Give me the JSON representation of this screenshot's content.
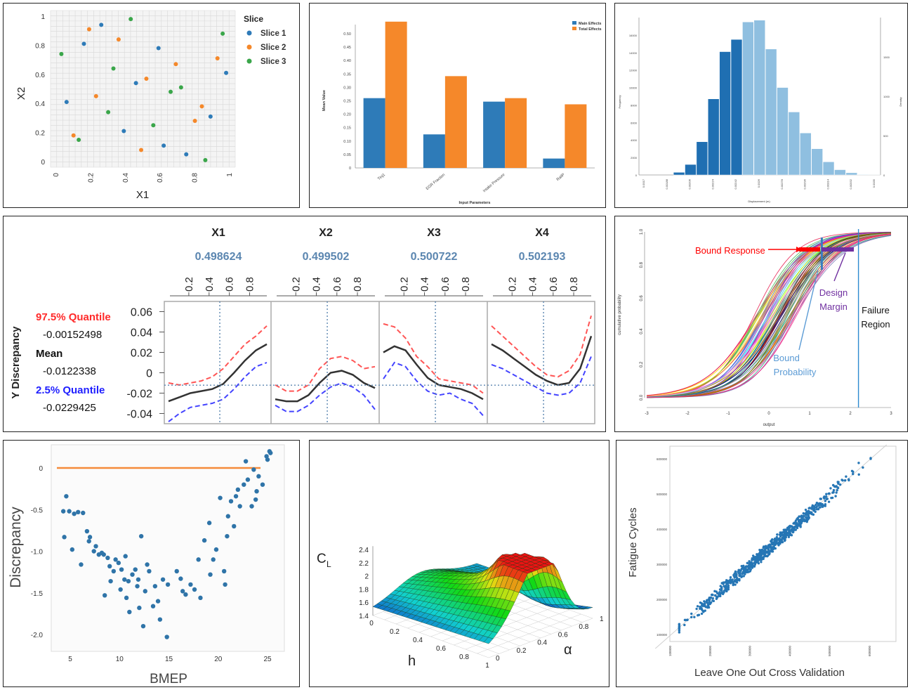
{
  "colors": {
    "blue": "#2e7bb8",
    "orange": "#f5882a",
    "green": "#3aa64a",
    "steel": "#5b86b0",
    "red": "#ff2a2a",
    "purple": "#7030a0",
    "darkblue": "#1f6fb2",
    "lightblue": "#8fbfe0"
  },
  "charts": {
    "scatter_slices": {
      "type": "scatter",
      "xlabel": "X1",
      "ylabel": "X2",
      "xticks": [
        "0",
        "0.2",
        "0.4",
        "0.6",
        "0.8",
        "1"
      ],
      "yticks": [
        "0",
        "0.2",
        "0.4",
        "0.6",
        "0.8",
        "1"
      ],
      "legend_title": "Slice",
      "series": [
        {
          "name": "Slice 1",
          "color": "#2e7bb8",
          "points": [
            [
              0.26,
              0.94
            ],
            [
              0.16,
              0.81
            ],
            [
              0.59,
              0.78
            ],
            [
              0.98,
              0.61
            ],
            [
              0.46,
              0.54
            ],
            [
              0.06,
              0.41
            ],
            [
              0.89,
              0.31
            ],
            [
              0.39,
              0.21
            ],
            [
              0.62,
              0.11
            ],
            [
              0.75,
              0.05
            ]
          ]
        },
        {
          "name": "Slice 2",
          "color": "#f5882a",
          "points": [
            [
              0.19,
              0.91
            ],
            [
              0.36,
              0.84
            ],
            [
              0.93,
              0.71
            ],
            [
              0.69,
              0.67
            ],
            [
              0.52,
              0.57
            ],
            [
              0.23,
              0.45
            ],
            [
              0.84,
              0.38
            ],
            [
              0.8,
              0.28
            ],
            [
              0.1,
              0.18
            ],
            [
              0.49,
              0.08
            ]
          ]
        },
        {
          "name": "Slice 3",
          "color": "#3aa64a",
          "points": [
            [
              0.43,
              0.98
            ],
            [
              0.96,
              0.88
            ],
            [
              0.03,
              0.74
            ],
            [
              0.33,
              0.64
            ],
            [
              0.72,
              0.51
            ],
            [
              0.66,
              0.48
            ],
            [
              0.3,
              0.34
            ],
            [
              0.56,
              0.25
            ],
            [
              0.13,
              0.15
            ],
            [
              0.86,
              0.01
            ]
          ]
        }
      ]
    },
    "sensitivity_bars": {
      "type": "bar",
      "xlabel": "Input Parameters",
      "ylabel": "Mean Value",
      "categories": [
        "Tinj1",
        "EGR Fraction",
        "Intake Pressure",
        "RailP"
      ],
      "yticks": [
        "0",
        "0.05",
        "0.10",
        "0.15",
        "0.20",
        "0.25",
        "0.30",
        "0.35",
        "0.40",
        "0.45",
        "0.50"
      ],
      "series": [
        {
          "name": "Main Effects",
          "color": "#2e7bb8",
          "values": [
            0.26,
            0.125,
            0.247,
            0.035
          ]
        },
        {
          "name": "Total Effects",
          "color": "#f5882a",
          "values": [
            0.545,
            0.342,
            0.26,
            0.237
          ]
        }
      ]
    },
    "histogram": {
      "type": "bar",
      "xlabel": "Displacement (m)",
      "ylabel": "Frequency",
      "y2label": "Density",
      "xticks": [
        "0.0017",
        "0.00188",
        "0.00206",
        "0.00224",
        "0.00242",
        "0.0026",
        "0.00278",
        "0.00296",
        "0.00314",
        "0.00332",
        "0.0035"
      ],
      "yticks": [
        "0",
        "2000",
        "4000",
        "6000",
        "8000",
        "10000",
        "12000",
        "14000",
        "16000"
      ],
      "y2ticks": [
        "0",
        "500",
        "1000",
        "1500"
      ],
      "values": [
        0,
        0,
        0,
        300,
        1200,
        3800,
        8700,
        14100,
        15500,
        17500,
        17700,
        14400,
        10000,
        7200,
        4800,
        3000,
        1500,
        600,
        250,
        50,
        10
      ],
      "split_index": 9,
      "colors": {
        "dark": "#1f6fb2",
        "light": "#8fbfe0"
      }
    },
    "profiler": {
      "type": "line",
      "ylabel": "Y Discrepancy",
      "panels": [
        {
          "name": "X1",
          "value": "0.498624"
        },
        {
          "name": "X2",
          "value": "0.499502"
        },
        {
          "name": "X3",
          "value": "0.500722"
        },
        {
          "name": "X4",
          "value": "0.502193"
        }
      ],
      "xticks": [
        "0.2",
        "0.4",
        "0.6",
        "0.8"
      ],
      "yticks": [
        "0.06",
        "0.04",
        "0.02",
        "0",
        "-0.02",
        "-0.04"
      ],
      "legend": [
        {
          "label": "97.5% Quantile",
          "value": "-0.00152498",
          "color": "#ff2a2a"
        },
        {
          "label": "Mean",
          "value": "-0.0122338",
          "color": "#111111"
        },
        {
          "label": "2.5% Quantile",
          "value": "-0.0229425",
          "color": "#1f1fff"
        }
      ],
      "curves": {
        "mean": [
          [
            -0.028,
            -0.024,
            -0.02,
            -0.018,
            -0.016,
            -0.011,
            0.0,
            0.012,
            0.022,
            0.028
          ],
          [
            -0.026,
            -0.028,
            -0.028,
            -0.022,
            -0.01,
            0.0,
            0.002,
            -0.002,
            -0.01,
            -0.015
          ],
          [
            0.02,
            0.026,
            0.022,
            0.008,
            -0.005,
            -0.012,
            -0.014,
            -0.016,
            -0.02,
            -0.026
          ],
          [
            0.028,
            0.022,
            0.014,
            0.006,
            -0.002,
            -0.008,
            -0.012,
            -0.01,
            0.004,
            0.036
          ]
        ],
        "upper": [
          [
            -0.01,
            -0.012,
            -0.01,
            -0.008,
            -0.004,
            0.004,
            0.016,
            0.028,
            0.036,
            0.046
          ],
          [
            -0.012,
            -0.018,
            -0.018,
            -0.012,
            0.004,
            0.014,
            0.016,
            0.012,
            0.004,
            0.006
          ],
          [
            0.048,
            0.045,
            0.034,
            0.016,
            0.006,
            -0.006,
            -0.008,
            -0.01,
            -0.012,
            -0.02
          ],
          [
            0.046,
            0.036,
            0.026,
            0.016,
            0.006,
            -0.002,
            -0.004,
            0.002,
            0.018,
            0.056
          ]
        ],
        "lower": [
          [
            -0.048,
            -0.04,
            -0.034,
            -0.032,
            -0.03,
            -0.026,
            -0.016,
            -0.004,
            0.006,
            0.01
          ],
          [
            -0.032,
            -0.038,
            -0.038,
            -0.032,
            -0.022,
            -0.014,
            -0.01,
            -0.014,
            -0.022,
            -0.036
          ],
          [
            -0.006,
            0.01,
            0.006,
            -0.008,
            -0.018,
            -0.022,
            -0.02,
            -0.026,
            -0.03,
            -0.042
          ],
          [
            0.008,
            0.004,
            -0.002,
            -0.008,
            -0.014,
            -0.02,
            -0.022,
            -0.02,
            -0.01,
            0.016
          ]
        ]
      }
    },
    "cdf": {
      "type": "line",
      "xlabel": "output",
      "ylabel": "cumulative probability",
      "xticks": [
        "-3",
        "-2",
        "-1",
        "0",
        "1",
        "2",
        "3"
      ],
      "yticks": [
        "0.0",
        "0.2",
        "0.4",
        "0.6",
        "0.8",
        "1.0"
      ],
      "annotations": {
        "bound_response": "Bound Response",
        "design_margin": "Design\nMargin",
        "failure_region": "Failure\nRegion",
        "bound_probability": "Bound\nProbability"
      },
      "failure_x": 2.2,
      "bound_x": 1.3
    },
    "discrepancy": {
      "type": "scatter",
      "xlabel": "BMEP",
      "ylabel": "Discrepancy",
      "xticks": [
        "5",
        "10",
        "15",
        "20",
        "25"
      ],
      "yticks": [
        "0",
        "-0.5",
        "-1.0",
        "-1.5",
        "-2.0"
      ],
      "ref_line": 0,
      "points": [
        [
          4.3,
          -0.52
        ],
        [
          4.6,
          -0.34
        ],
        [
          4.9,
          -0.52
        ],
        [
          4.4,
          -0.83
        ],
        [
          5.4,
          -0.55
        ],
        [
          5.8,
          -0.53
        ],
        [
          6.3,
          -0.54
        ],
        [
          6.1,
          -1.16
        ],
        [
          6.7,
          -0.76
        ],
        [
          7.0,
          -0.83
        ],
        [
          6.9,
          -0.88
        ],
        [
          7.4,
          -1.0
        ],
        [
          7.9,
          -1.04
        ],
        [
          8.4,
          -1.04
        ],
        [
          8.8,
          -1.08
        ],
        [
          8.5,
          -1.53
        ],
        [
          9.0,
          -1.18
        ],
        [
          9.1,
          -1.36
        ],
        [
          9.4,
          -1.24
        ],
        [
          9.9,
          -1.14
        ],
        [
          10.2,
          -1.22
        ],
        [
          10.5,
          -1.34
        ],
        [
          10.1,
          -1.46
        ],
        [
          10.7,
          -1.56
        ],
        [
          11.0,
          -1.73
        ],
        [
          11.3,
          -1.28
        ],
        [
          11.6,
          -1.22
        ],
        [
          11.9,
          -1.34
        ],
        [
          12.0,
          -1.68
        ],
        [
          12.4,
          -1.9
        ],
        [
          12.6,
          -1.48
        ],
        [
          12.2,
          -0.82
        ],
        [
          13.0,
          -1.24
        ],
        [
          13.4,
          -1.66
        ],
        [
          13.9,
          -1.6
        ],
        [
          14.1,
          -1.82
        ],
        [
          14.8,
          -2.03
        ],
        [
          14.9,
          -1.4
        ],
        [
          15.8,
          -1.24
        ],
        [
          16.2,
          -1.33
        ],
        [
          16.7,
          -1.52
        ],
        [
          17.6,
          -1.46
        ],
        [
          18.2,
          -1.56
        ],
        [
          18.6,
          -0.87
        ],
        [
          19.1,
          -0.66
        ],
        [
          19.5,
          -1.1
        ],
        [
          19.8,
          -0.98
        ],
        [
          20.2,
          -0.36
        ],
        [
          20.6,
          -1.24
        ],
        [
          20.9,
          -0.82
        ],
        [
          21.3,
          -0.4
        ],
        [
          21.8,
          -0.34
        ],
        [
          22.2,
          -0.46
        ],
        [
          22.6,
          -0.2
        ],
        [
          23.0,
          -0.14
        ],
        [
          23.4,
          -0.46
        ],
        [
          23.8,
          -0.38
        ],
        [
          24.1,
          -0.1
        ],
        [
          24.5,
          -0.2
        ],
        [
          24.9,
          0.14
        ],
        [
          25.2,
          0.2
        ],
        [
          25.0,
          0.1
        ],
        [
          25.3,
          0.18
        ],
        [
          22.8,
          0.08
        ],
        [
          23.6,
          -0.02
        ],
        [
          21.6,
          -0.7
        ],
        [
          20.7,
          -1.4
        ],
        [
          19.2,
          -1.28
        ],
        [
          18.0,
          -1.1
        ],
        [
          16.4,
          -1.48
        ],
        [
          13.6,
          -1.42
        ],
        [
          11.8,
          -1.42
        ],
        [
          10.6,
          -1.06
        ],
        [
          9.6,
          -1.1
        ],
        [
          8.2,
          -1.02
        ],
        [
          7.6,
          -0.94
        ],
        [
          5.2,
          -0.98
        ],
        [
          22.0,
          -0.26
        ],
        [
          21.0,
          -0.58
        ],
        [
          23.9,
          -0.28
        ],
        [
          12.8,
          -1.16
        ],
        [
          10.9,
          -1.36
        ],
        [
          14.4,
          -1.34
        ],
        [
          17.2,
          -1.4
        ]
      ]
    },
    "surface": {
      "type": "surface",
      "zlabel": "C",
      "zlabel_sub": "L",
      "xlabel": "h",
      "ylabel": "α",
      "zticks": [
        "1.4",
        "1.6",
        "1.8",
        "2",
        "2.2",
        "2.4"
      ],
      "hticks": [
        "0",
        "0.2",
        "0.4",
        "0.6",
        "0.8",
        "1"
      ],
      "aticks": [
        "0",
        "0.2",
        "0.4",
        "0.6",
        "0.8",
        "1"
      ]
    },
    "loocv": {
      "type": "scatter",
      "xlabel": "Leave One Out Cross Validation",
      "ylabel": "Fatigue Cycles",
      "xticks": [
        "100000",
        "200000",
        "300000",
        "400000",
        "500000",
        "600000"
      ],
      "yticks": [
        "100000",
        "200000",
        "300000",
        "400000",
        "500000",
        "600000"
      ]
    }
  }
}
